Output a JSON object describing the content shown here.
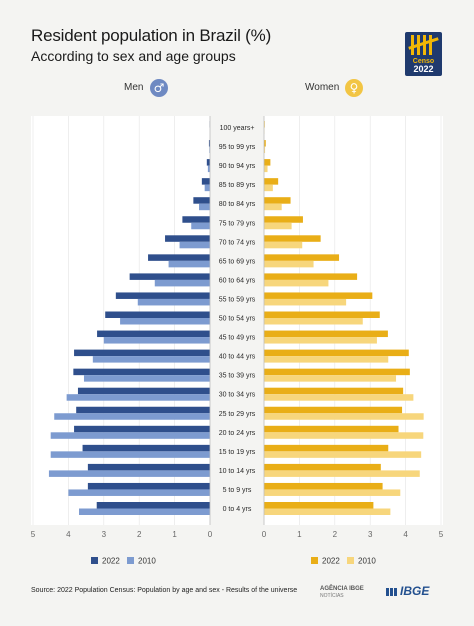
{
  "header": {
    "title": "Resident population in Brazil (%)",
    "subtitle": "According to sex and age groups",
    "logo_line1": "Censo",
    "logo_line2": "2022"
  },
  "men_label": "Men",
  "women_label": "Women",
  "men_icon": "male-symbol-icon",
  "women_icon": "female-symbol-icon",
  "colors": {
    "men_2022": "#2f4f8c",
    "men_2010": "#7d9bd0",
    "women_2022": "#e9ae17",
    "women_2010": "#f7d67c",
    "men_icon_bg": "#6e89c2",
    "women_icon_bg": "#f2c544"
  },
  "chart_data": {
    "type": "bar",
    "title": "Resident population in Brazil (%)",
    "subtitle": "According to sex and age groups",
    "categories": [
      "100 years+",
      "95 to 99 yrs",
      "90 to 94 yrs",
      "85 to 89 yrs",
      "80 to 84 yrs",
      "75 to 79 yrs",
      "70 to 74 yrs",
      "65 to 69 yrs",
      "60 to 64 yrs",
      "55 to 59 yrs",
      "50 to 54 yrs",
      "45 to 49 yrs",
      "40 to 44 yrs",
      "35 to 39 yrs",
      "30 to 34 yrs",
      "25 to 29 yrs",
      "20 to 24 yrs",
      "15 to 19 yrs",
      "10 to 14 yrs",
      "5 to 9 yrs",
      "0 to 4 yrs"
    ],
    "series": [
      {
        "name": "Men 2022",
        "values": [
          0.01,
          0.03,
          0.09,
          0.23,
          0.47,
          0.78,
          1.27,
          1.75,
          2.27,
          2.66,
          2.96,
          3.19,
          3.84,
          3.86,
          3.73,
          3.78,
          3.84,
          3.6,
          3.45,
          3.45,
          3.2
        ]
      },
      {
        "name": "Men 2010",
        "values": [
          0.0,
          0.02,
          0.06,
          0.15,
          0.31,
          0.53,
          0.86,
          1.17,
          1.56,
          2.04,
          2.54,
          3.0,
          3.31,
          3.56,
          4.05,
          4.4,
          4.5,
          4.5,
          4.55,
          4.0,
          3.7
        ]
      },
      {
        "name": "Women 2022",
        "values": [
          0.02,
          0.05,
          0.18,
          0.4,
          0.75,
          1.1,
          1.6,
          2.12,
          2.63,
          3.06,
          3.27,
          3.5,
          4.09,
          4.12,
          3.93,
          3.9,
          3.8,
          3.51,
          3.3,
          3.35,
          3.09
        ]
      },
      {
        "name": "Women 2010",
        "values": [
          0.01,
          0.03,
          0.1,
          0.25,
          0.5,
          0.78,
          1.08,
          1.4,
          1.82,
          2.32,
          2.79,
          3.19,
          3.51,
          3.73,
          4.22,
          4.51,
          4.5,
          4.44,
          4.4,
          3.85,
          3.57
        ]
      }
    ],
    "xlim": [
      0,
      5
    ],
    "x_ticks": [
      5,
      4,
      3,
      2,
      1,
      0
    ],
    "legend": [
      "2022",
      "2010"
    ],
    "legend_placement": "bottom",
    "grid": true
  },
  "footer": {
    "source": "Source: 2022 Population Census: Population by age and sex - Results of the universe",
    "agencia_main": "AGÊNCIA IBGE",
    "agencia_sub": "NOTÍCIAS",
    "ibge": "IBGE"
  }
}
